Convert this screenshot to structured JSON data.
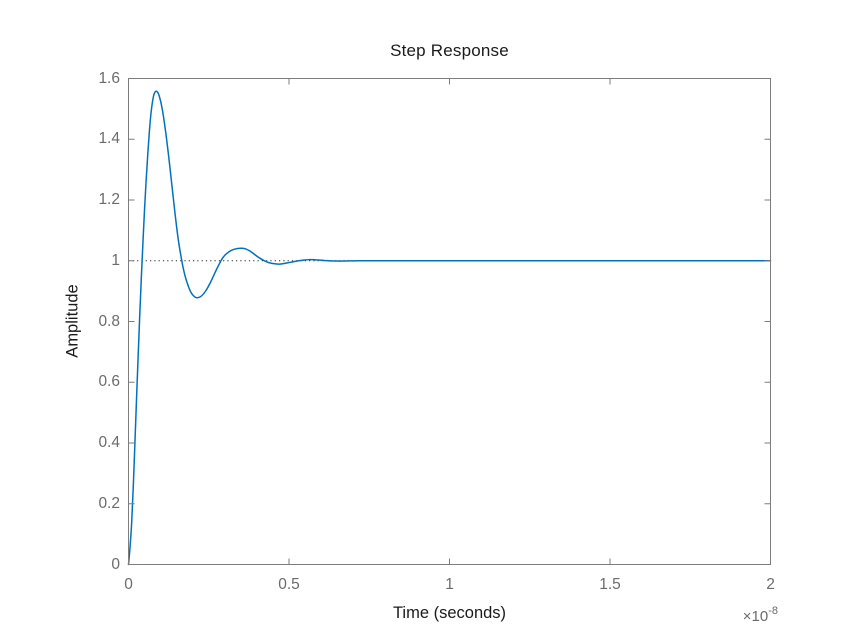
{
  "chart_data": {
    "type": "line",
    "title": "Step Response",
    "xlabel": "Time (seconds)",
    "ylabel": "Amplitude",
    "x_scale_label": {
      "multiplier": "×10",
      "exponent": "-8"
    },
    "xlim": [
      0,
      2
    ],
    "ylim": [
      0,
      1.6
    ],
    "xticks": [
      0,
      0.5,
      1,
      1.5,
      2
    ],
    "xtick_labels": [
      "0",
      "0.5",
      "1",
      "1.5",
      "2"
    ],
    "yticks": [
      0,
      0.2,
      0.4,
      0.6,
      0.8,
      1,
      1.2,
      1.4,
      1.6
    ],
    "ytick_labels": [
      "0",
      "0.2",
      "0.4",
      "0.6",
      "0.8",
      "1",
      "1.2",
      "1.4",
      "1.6"
    ],
    "grid": false,
    "legend": "none",
    "colors": {
      "line": "#0072BD",
      "reference_line": "#262626",
      "axis": "#7d7d7d",
      "tick_label": "#6b6b6b",
      "text": "#1a1a1a",
      "background": "#ffffff"
    },
    "series": [
      {
        "name": "step-response",
        "style": "solid",
        "color": "#0072BD",
        "points": [
          [
            0,
            0
          ],
          [
            0.005,
            0.06
          ],
          [
            0.01,
            0.14
          ],
          [
            0.015,
            0.26
          ],
          [
            0.02,
            0.4
          ],
          [
            0.025,
            0.545
          ],
          [
            0.03,
            0.685
          ],
          [
            0.035,
            0.82
          ],
          [
            0.04,
            0.945
          ],
          [
            0.045,
            1.06
          ],
          [
            0.05,
            1.17
          ],
          [
            0.055,
            1.265
          ],
          [
            0.06,
            1.35
          ],
          [
            0.065,
            1.425
          ],
          [
            0.07,
            1.485
          ],
          [
            0.075,
            1.525
          ],
          [
            0.08,
            1.55
          ],
          [
            0.087,
            1.558
          ],
          [
            0.095,
            1.545
          ],
          [
            0.105,
            1.5
          ],
          [
            0.115,
            1.43
          ],
          [
            0.125,
            1.345
          ],
          [
            0.135,
            1.25
          ],
          [
            0.145,
            1.155
          ],
          [
            0.155,
            1.07
          ],
          [
            0.166,
            1.0
          ],
          [
            0.175,
            0.955
          ],
          [
            0.185,
            0.92
          ],
          [
            0.195,
            0.895
          ],
          [
            0.205,
            0.882
          ],
          [
            0.213,
            0.878
          ],
          [
            0.225,
            0.882
          ],
          [
            0.24,
            0.9
          ],
          [
            0.255,
            0.928
          ],
          [
            0.27,
            0.962
          ],
          [
            0.288,
            1.0
          ],
          [
            0.3,
            1.018
          ],
          [
            0.315,
            1.031
          ],
          [
            0.33,
            1.038
          ],
          [
            0.35,
            1.041
          ],
          [
            0.365,
            1.039
          ],
          [
            0.38,
            1.031
          ],
          [
            0.395,
            1.019
          ],
          [
            0.41,
            1.008
          ],
          [
            0.425,
            0.999
          ],
          [
            0.44,
            0.993
          ],
          [
            0.455,
            0.99
          ],
          [
            0.47,
            0.989
          ],
          [
            0.485,
            0.991
          ],
          [
            0.5,
            0.994
          ],
          [
            0.515,
            0.997
          ],
          [
            0.53,
            1.0
          ],
          [
            0.545,
            1.002
          ],
          [
            0.56,
            1.0035
          ],
          [
            0.575,
            1.0035
          ],
          [
            0.59,
            1.0025
          ],
          [
            0.61,
            1.001
          ],
          [
            0.63,
            0.9995
          ],
          [
            0.65,
            0.999
          ],
          [
            0.67,
            0.999
          ],
          [
            0.69,
            0.9995
          ],
          [
            0.72,
            1.0
          ],
          [
            0.76,
            1.0
          ],
          [
            0.8,
            1.0
          ],
          [
            0.9,
            1.0
          ],
          [
            1.0,
            1.0
          ],
          [
            1.2,
            1.0
          ],
          [
            1.4,
            1.0
          ],
          [
            1.6,
            1.0
          ],
          [
            1.8,
            1.0
          ],
          [
            2.0,
            1.0
          ]
        ]
      },
      {
        "name": "steady-state-reference",
        "style": "dotted",
        "color": "#262626",
        "points": [
          [
            0,
            1
          ],
          [
            2,
            1
          ]
        ]
      }
    ]
  }
}
